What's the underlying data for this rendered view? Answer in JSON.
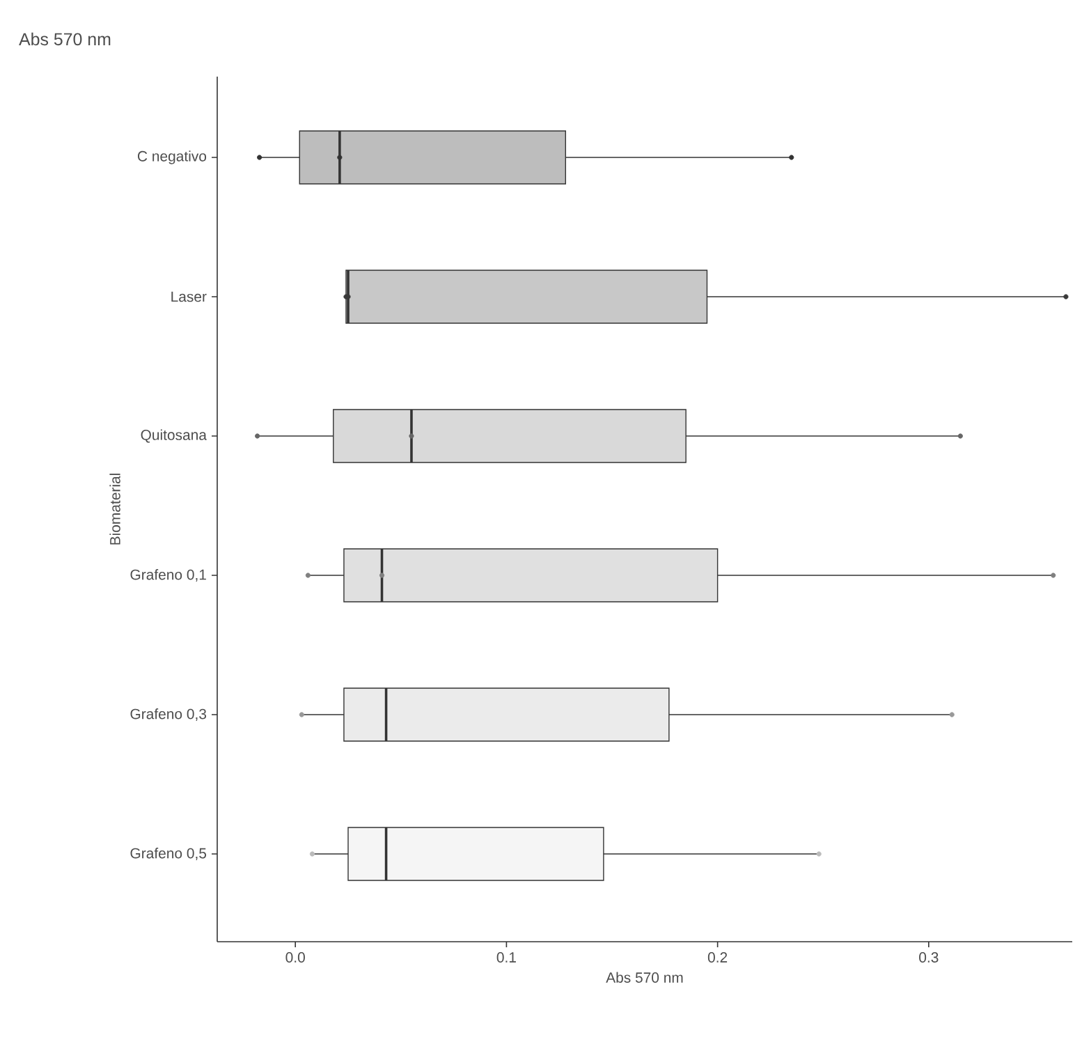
{
  "chart_data": {
    "type": "box",
    "orientation": "horizontal",
    "title": "Abs 570 nm",
    "xlabel": "Abs 570 nm",
    "ylabel": "Biomaterial",
    "categories": [
      "C negativo",
      "Laser",
      "Quitosana",
      "Grafeno 0,1",
      "Grafeno 0,3",
      "Grafeno 0,5"
    ],
    "colors": [
      "#bdbdbd",
      "#c8c8c8",
      "#d9d9d9",
      "#e0e0e0",
      "#ebebeb",
      "#f5f5f5"
    ],
    "boxes": [
      {
        "low": -0.017,
        "q1": 0.002,
        "median": 0.021,
        "q3": 0.128,
        "high": 0.235
      },
      {
        "low": 0.024,
        "q1": 0.024,
        "median": 0.025,
        "q3": 0.195,
        "high": 0.365
      },
      {
        "low": -0.018,
        "q1": 0.018,
        "median": 0.055,
        "q3": 0.185,
        "high": 0.315
      },
      {
        "low": 0.006,
        "q1": 0.023,
        "median": 0.041,
        "q3": 0.2,
        "high": 0.359
      },
      {
        "low": 0.003,
        "q1": 0.023,
        "median": 0.043,
        "q3": 0.177,
        "high": 0.311
      },
      {
        "low": 0.008,
        "q1": 0.025,
        "median": 0.043,
        "q3": 0.146,
        "high": 0.248
      }
    ],
    "xlim": [
      -0.037,
      0.368
    ],
    "xticks": [
      {
        "value": 0,
        "label": "0.0"
      },
      0.1,
      0.2,
      0.3
    ],
    "series": [
      {
        "type": "scatter",
        "marker": "circle",
        "x": [
          "C negativo",
          "C negativo",
          "C negativo",
          "Laser",
          "Laser",
          "Laser",
          "Quitosana",
          "Quitosana",
          "Quitosana",
          "Grafeno 0,1",
          "Grafeno 0,1",
          "Grafeno 0,1",
          "Grafeno 0,3",
          "Grafeno 0,3",
          "Grafeno 0,5",
          "Grafeno 0,5"
        ],
        "values": [
          -0.017,
          0.021,
          0.235,
          0.024,
          0.025,
          0.365,
          -0.018,
          0.055,
          0.315,
          0.006,
          0.041,
          0.359,
          0.003,
          0.311,
          0.008,
          0.248
        ],
        "colors": [
          "#333333",
          "#333333",
          "#333333",
          "#3a3a3a",
          "#3a3a3a",
          "#3a3a3a",
          "#666666",
          "#666666",
          "#666666",
          "#808080",
          "#808080",
          "#808080",
          "#999999",
          "#999999",
          "#bbbbbb",
          "#bbbbbb"
        ]
      }
    ]
  }
}
